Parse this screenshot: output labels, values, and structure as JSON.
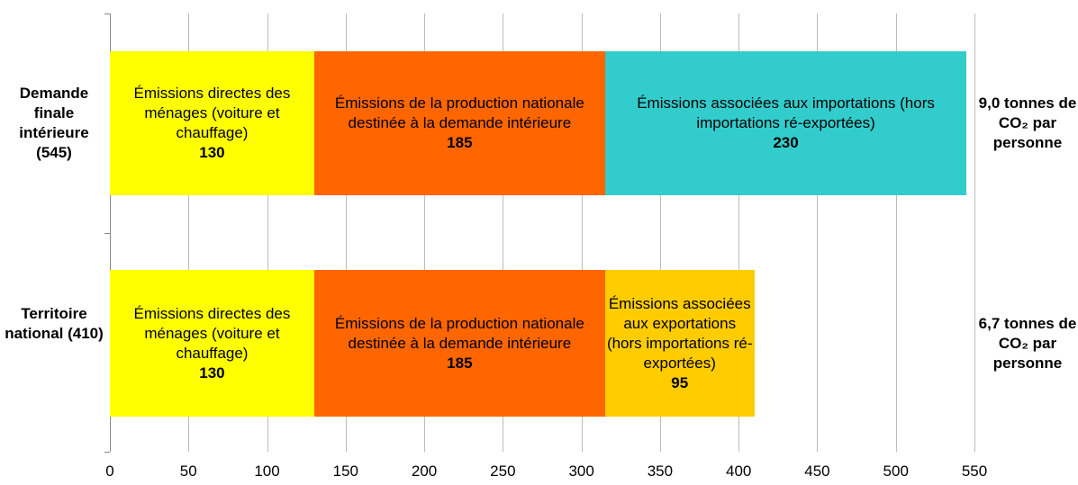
{
  "chart_data": {
    "type": "stacked-barh",
    "categories": [
      "Demande finale intérieure (545)",
      "Territoire national (410)"
    ],
    "series": [
      {
        "name": "Émissions directes des ménages (voiture et chauffage)",
        "color": "#ffff00",
        "values": [
          130,
          130
        ]
      },
      {
        "name": "Émissions de la production nationale destinée à la demande intérieure",
        "color": "#ff6600",
        "values": [
          185,
          185
        ]
      },
      {
        "name": "Émissions associées aux importations (hors importations ré-exportées)",
        "color": "#33cccc",
        "values": [
          230,
          null
        ]
      },
      {
        "name": "Émissions associées aux exportations (hors importations ré-exportées)",
        "color": "#ffcc00",
        "values": [
          null,
          95
        ]
      }
    ],
    "annotations": [
      "9,0 tonnes de CO₂ par personne",
      "6,7 tonnes de CO₂ par personne"
    ],
    "xlim": [
      0,
      550
    ],
    "xticks": [
      0,
      50,
      100,
      150,
      200,
      250,
      300,
      350,
      400,
      450,
      500,
      550
    ],
    "grid": true
  }
}
